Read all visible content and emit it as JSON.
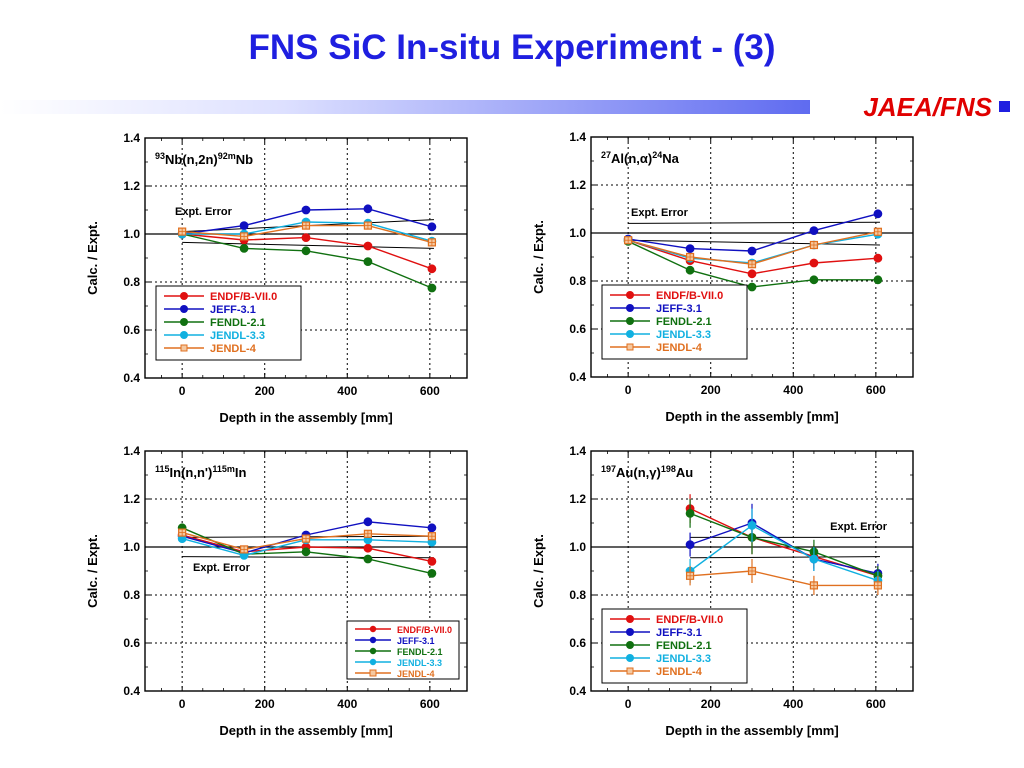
{
  "slide": {
    "title": "FNS SiC In-situ Experiment - (3)",
    "org": "JAEA/FNS"
  },
  "colors": {
    "title": "#1f1fe0",
    "org": "#e00000"
  },
  "chart_data": [
    {
      "type": "line",
      "reaction": {
        "pre": "93",
        "a": "Nb(n,2n)",
        "sup": "92m",
        "b": "Nb"
      },
      "xlabel": "Depth in the assembly [mm]",
      "ylabel": "Calc. / Expt.",
      "xlim": [
        -90,
        690
      ],
      "ylim": [
        0.4,
        1.4
      ],
      "xticks": [
        0,
        200,
        400,
        600
      ],
      "yticks": [
        0.4,
        0.6,
        0.8,
        1.0,
        1.2,
        1.4
      ],
      "grid": true,
      "error_label": "Expt. Error",
      "error_band": {
        "upper": [
          [
            0,
            1.01
          ],
          [
            610,
            1.06
          ]
        ],
        "lower": [
          [
            0,
            0.965
          ],
          [
            610,
            0.94
          ]
        ]
      },
      "legend_position": "bottom-left",
      "legend_size": "normal",
      "series": [
        {
          "name": "ENDF/B-VII.0",
          "color": "#e01010",
          "marker": "circle",
          "x": [
            0,
            150,
            300,
            450,
            605
          ],
          "y": [
            1.0,
            0.975,
            0.985,
            0.95,
            0.855
          ]
        },
        {
          "name": "JEFF-3.1",
          "color": "#1010c0",
          "marker": "circle",
          "x": [
            0,
            150,
            300,
            450,
            605
          ],
          "y": [
            1.0,
            1.035,
            1.1,
            1.105,
            1.03
          ]
        },
        {
          "name": "FENDL-2.1",
          "color": "#107010",
          "marker": "circle",
          "x": [
            0,
            150,
            300,
            450,
            605
          ],
          "y": [
            1.0,
            0.94,
            0.93,
            0.885,
            0.775
          ]
        },
        {
          "name": "JENDL-3.3",
          "color": "#10b0e0",
          "marker": "circle",
          "x": [
            0,
            150,
            300,
            450,
            605
          ],
          "y": [
            1.0,
            1.0,
            1.05,
            1.045,
            0.97
          ]
        },
        {
          "name": "JENDL-4",
          "color": "#e07020",
          "marker": "square",
          "x": [
            0,
            150,
            300,
            450,
            605
          ],
          "y": [
            1.01,
            0.99,
            1.035,
            1.035,
            0.965
          ]
        }
      ]
    },
    {
      "type": "line",
      "reaction": {
        "pre": "27",
        "a": "Al(n,α)",
        "sup": "24",
        "b": "Na"
      },
      "xlabel": "Depth in the assembly [mm]",
      "ylabel": "Calc. / Expt.",
      "xlim": [
        -90,
        690
      ],
      "ylim": [
        0.4,
        1.4
      ],
      "xticks": [
        0,
        200,
        400,
        600
      ],
      "yticks": [
        0.4,
        0.6,
        0.8,
        1.0,
        1.2,
        1.4
      ],
      "grid": true,
      "error_label": "Expt. Error",
      "error_band": {
        "upper": [
          [
            0,
            1.04
          ],
          [
            610,
            1.045
          ]
        ],
        "lower": [
          [
            0,
            0.97
          ],
          [
            610,
            0.95
          ]
        ]
      },
      "legend_position": "bottom-left",
      "legend_size": "normal",
      "series": [
        {
          "name": "ENDF/B-VII.0",
          "color": "#e01010",
          "marker": "circle",
          "x": [
            0,
            150,
            300,
            450,
            605
          ],
          "y": [
            0.97,
            0.885,
            0.83,
            0.875,
            0.895
          ]
        },
        {
          "name": "JEFF-3.1",
          "color": "#1010c0",
          "marker": "circle",
          "x": [
            0,
            150,
            300,
            450,
            605
          ],
          "y": [
            0.975,
            0.935,
            0.925,
            1.01,
            1.08
          ]
        },
        {
          "name": "FENDL-2.1",
          "color": "#107010",
          "marker": "circle",
          "x": [
            0,
            150,
            300,
            450,
            605
          ],
          "y": [
            0.965,
            0.845,
            0.775,
            0.805,
            0.805
          ]
        },
        {
          "name": "JENDL-3.3",
          "color": "#10b0e0",
          "marker": "circle",
          "x": [
            0,
            150,
            300,
            450,
            605
          ],
          "y": [
            0.97,
            0.895,
            0.875,
            0.95,
            0.995
          ]
        },
        {
          "name": "JENDL-4",
          "color": "#e07020",
          "marker": "square",
          "x": [
            0,
            150,
            300,
            450,
            605
          ],
          "y": [
            0.97,
            0.9,
            0.87,
            0.95,
            1.005
          ]
        }
      ]
    },
    {
      "type": "line",
      "reaction": {
        "pre": "115",
        "a": "In(n,n')",
        "sup": "115m",
        "b": "In"
      },
      "xlabel": "Depth in the assembly [mm]",
      "ylabel": "Calc. / Expt.",
      "xlim": [
        -90,
        690
      ],
      "ylim": [
        0.4,
        1.4
      ],
      "xticks": [
        0,
        200,
        400,
        600
      ],
      "yticks": [
        0.4,
        0.6,
        0.8,
        1.0,
        1.2,
        1.4
      ],
      "grid": true,
      "error_label": "Expt. Error",
      "error_band": {
        "upper": [
          [
            0,
            1.04
          ],
          [
            610,
            1.045
          ]
        ],
        "lower": [
          [
            0,
            0.96
          ],
          [
            610,
            0.955
          ]
        ]
      },
      "legend_position": "bottom-right",
      "legend_size": "small",
      "series": [
        {
          "name": "ENDF/B-VII.0",
          "color": "#e01010",
          "marker": "circle",
          "x": [
            0,
            150,
            300,
            450,
            605
          ],
          "y": [
            1.05,
            0.98,
            1.0,
            0.995,
            0.94
          ]
        },
        {
          "name": "JEFF-3.1",
          "color": "#1010c0",
          "marker": "circle",
          "x": [
            0,
            150,
            300,
            450,
            605
          ],
          "y": [
            1.045,
            0.975,
            1.05,
            1.105,
            1.08
          ]
        },
        {
          "name": "FENDL-2.1",
          "color": "#107010",
          "marker": "circle",
          "x": [
            0,
            150,
            300,
            450,
            605
          ],
          "y": [
            1.08,
            0.97,
            0.98,
            0.95,
            0.89
          ]
        },
        {
          "name": "JENDL-3.3",
          "color": "#10b0e0",
          "marker": "circle",
          "x": [
            0,
            150,
            300,
            450,
            605
          ],
          "y": [
            1.035,
            0.965,
            1.03,
            1.03,
            1.02
          ]
        },
        {
          "name": "JENDL-4",
          "color": "#e07020",
          "marker": "square",
          "x": [
            0,
            150,
            300,
            450,
            605
          ],
          "y": [
            1.06,
            0.99,
            1.035,
            1.055,
            1.045
          ]
        }
      ]
    },
    {
      "type": "line",
      "reaction": {
        "pre": "197",
        "a": "Au(n,γ)",
        "sup": "198",
        "b": "Au"
      },
      "xlabel": "Depth in the assembly [mm]",
      "ylabel": "Calc. / Expt.",
      "xlim": [
        -90,
        690
      ],
      "ylim": [
        0.4,
        1.4
      ],
      "xticks": [
        0,
        200,
        400,
        600
      ],
      "yticks": [
        0.4,
        0.6,
        0.8,
        1.0,
        1.2,
        1.4
      ],
      "grid": true,
      "error_label": "Expt. Error",
      "error_band": {
        "upper": [
          [
            150,
            1.04
          ],
          [
            610,
            1.04
          ]
        ],
        "lower": [
          [
            150,
            0.955
          ],
          [
            610,
            0.96
          ]
        ]
      },
      "legend_position": "bottom-left",
      "legend_size": "normal",
      "series": [
        {
          "name": "ENDF/B-VII.0",
          "color": "#e01010",
          "marker": "circle",
          "x": [
            150,
            300,
            450,
            605
          ],
          "y": [
            1.16,
            1.04,
            0.96,
            0.88
          ],
          "err": [
            0.06,
            0.07,
            0.05,
            0.04
          ]
        },
        {
          "name": "JEFF-3.1",
          "color": "#1010c0",
          "marker": "circle",
          "x": [
            150,
            300,
            450,
            605
          ],
          "y": [
            1.01,
            1.1,
            0.95,
            0.89
          ],
          "err": [
            0.05,
            0.08,
            0.05,
            0.04
          ]
        },
        {
          "name": "FENDL-2.1",
          "color": "#107010",
          "marker": "circle",
          "x": [
            150,
            300,
            450,
            605
          ],
          "y": [
            1.14,
            1.04,
            0.98,
            0.88
          ],
          "err": [
            0.06,
            0.07,
            0.05,
            0.04
          ]
        },
        {
          "name": "JENDL-3.3",
          "color": "#10b0e0",
          "marker": "circle",
          "x": [
            150,
            300,
            450,
            605
          ],
          "y": [
            0.9,
            1.09,
            0.95,
            0.86
          ],
          "err": [
            0.05,
            0.07,
            0.05,
            0.04
          ]
        },
        {
          "name": "JENDL-4",
          "color": "#e07020",
          "marker": "square",
          "x": [
            150,
            300,
            450,
            605
          ],
          "y": [
            0.88,
            0.9,
            0.84,
            0.84
          ],
          "err": [
            0.04,
            0.05,
            0.04,
            0.04
          ]
        }
      ]
    }
  ]
}
